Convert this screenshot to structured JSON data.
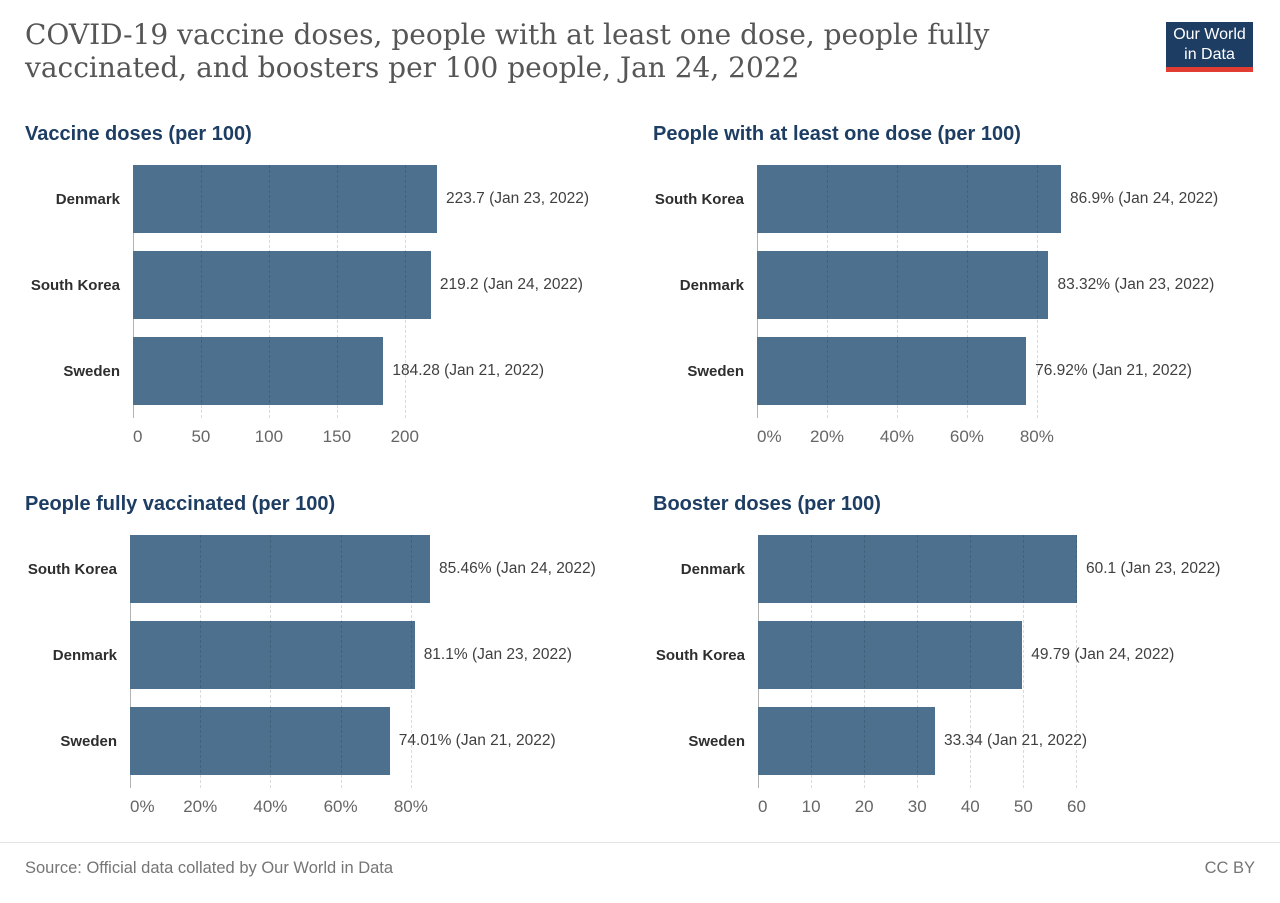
{
  "header": {
    "title": "COVID-19 vaccine doses, people with at least one dose, people fully vaccinated, and boosters per 100 people, Jan 24, 2022",
    "title_lines": [
      "COVID-19 vaccine doses, people with at least one dose, people fully",
      "vaccinated, and boosters per 100 people, Jan 24, 2022"
    ],
    "logo": {
      "line1": "Our World",
      "line2": "in Data"
    }
  },
  "footer": {
    "source": "Source: Official data collated by Our World in Data",
    "license": "CC BY"
  },
  "colors": {
    "bar": "#4C708E",
    "panel_title": "#1D3D63",
    "logo_bg": "#1D3D63",
    "logo_stripe": "#E23D33",
    "title_text": "#565656",
    "tick_text": "#666666",
    "label_text": "#404040",
    "category_text": "#2E2E2E",
    "footer_text": "#757575"
  },
  "chart_data": [
    {
      "type": "bar",
      "orientation": "horizontal",
      "title": "Vaccine doses (per 100)",
      "categories": [
        "Denmark",
        "South Korea",
        "Sweden"
      ],
      "values": [
        223.7,
        219.2,
        184.28
      ],
      "value_labels": [
        "223.7 (Jan 23, 2022)",
        "219.2 (Jan 24, 2022)",
        "184.28 (Jan 21, 2022)"
      ],
      "axis_max": 223.7,
      "xlim": [
        0,
        223.7
      ],
      "grid": "vertical-dashed",
      "ticks": [
        {
          "value": 0,
          "label": "0"
        },
        {
          "value": 50,
          "label": "50"
        },
        {
          "value": 100,
          "label": "100"
        },
        {
          "value": 150,
          "label": "150"
        },
        {
          "value": 200,
          "label": "200"
        }
      ]
    },
    {
      "type": "bar",
      "orientation": "horizontal",
      "title": "People with at least one dose (per 100)",
      "categories": [
        "South Korea",
        "Denmark",
        "Sweden"
      ],
      "values": [
        86.9,
        83.32,
        76.92
      ],
      "value_labels": [
        "86.9% (Jan 24, 2022)",
        "83.32% (Jan 23, 2022)",
        "76.92% (Jan 21, 2022)"
      ],
      "axis_max": 86.9,
      "xlim": [
        0,
        86.9
      ],
      "grid": "vertical-dashed",
      "ticks": [
        {
          "value": 0,
          "label": "0%"
        },
        {
          "value": 20,
          "label": "20%"
        },
        {
          "value": 40,
          "label": "40%"
        },
        {
          "value": 60,
          "label": "60%"
        },
        {
          "value": 80,
          "label": "80%"
        }
      ]
    },
    {
      "type": "bar",
      "orientation": "horizontal",
      "title": "People fully vaccinated (per 100)",
      "categories": [
        "South Korea",
        "Denmark",
        "Sweden"
      ],
      "values": [
        85.46,
        81.1,
        74.01
      ],
      "value_labels": [
        "85.46% (Jan 24, 2022)",
        "81.1% (Jan 23, 2022)",
        "74.01% (Jan 21, 2022)"
      ],
      "axis_max": 85.46,
      "xlim": [
        0,
        85.46
      ],
      "grid": "vertical-dashed",
      "ticks": [
        {
          "value": 0,
          "label": "0%"
        },
        {
          "value": 20,
          "label": "20%"
        },
        {
          "value": 40,
          "label": "40%"
        },
        {
          "value": 60,
          "label": "60%"
        },
        {
          "value": 80,
          "label": "80%"
        }
      ]
    },
    {
      "type": "bar",
      "orientation": "horizontal",
      "title": "Booster doses (per 100)",
      "categories": [
        "Denmark",
        "South Korea",
        "Sweden"
      ],
      "values": [
        60.1,
        49.79,
        33.34
      ],
      "value_labels": [
        "60.1 (Jan 23, 2022)",
        "49.79 (Jan 24, 2022)",
        "33.34 (Jan 21, 2022)"
      ],
      "axis_max": 60.1,
      "xlim": [
        0,
        60.1
      ],
      "grid": "vertical-dashed",
      "ticks": [
        {
          "value": 0,
          "label": "0"
        },
        {
          "value": 10,
          "label": "10"
        },
        {
          "value": 20,
          "label": "20"
        },
        {
          "value": 30,
          "label": "30"
        },
        {
          "value": 40,
          "label": "40"
        },
        {
          "value": 50,
          "label": "50"
        },
        {
          "value": 60,
          "label": "60"
        }
      ]
    }
  ]
}
